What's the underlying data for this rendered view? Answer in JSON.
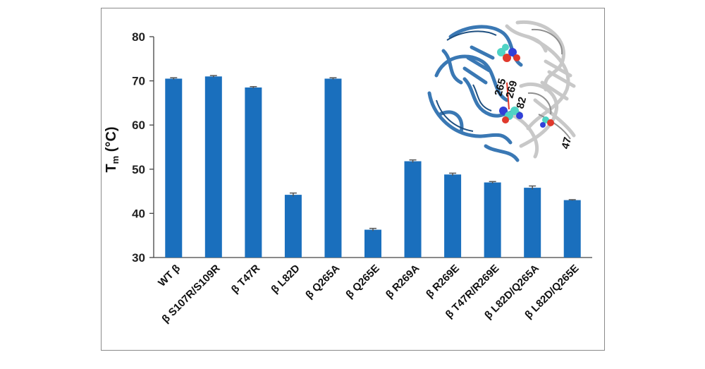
{
  "chart_data": {
    "type": "bar",
    "ylabel_main": "T",
    "ylabel_sub": "m",
    "ylabel_unit": " (°C)",
    "ylim": [
      30,
      80
    ],
    "yticks": [
      30,
      40,
      50,
      60,
      70,
      80
    ],
    "grid": false,
    "bar_color": "#1a6fbd",
    "error_color": "#555555",
    "categories": [
      "WT β",
      "β S107R/S109R",
      "β T47R",
      "β L82D",
      "β Q265A",
      "β Q265E",
      "β R269A",
      "β R269E",
      "β T47R/R269E",
      "β L82D/Q265A",
      "β L82D/Q265E"
    ],
    "values": [
      70.5,
      71.0,
      68.5,
      44.2,
      70.5,
      36.3,
      51.8,
      48.8,
      47.0,
      45.8,
      43.0
    ],
    "errors": [
      0.2,
      0.2,
      0.2,
      0.4,
      0.2,
      0.3,
      0.3,
      0.3,
      0.2,
      0.4,
      0.1
    ]
  },
  "inset": {
    "residue_labels": [
      "265",
      "269",
      "82",
      "47"
    ],
    "colors": {
      "chain_a": "#3a78b4",
      "chain_b": "#c8c8c8",
      "atom_c": "#4fd3c4",
      "atom_n": "#3140d8",
      "atom_o": "#e0392c"
    }
  }
}
